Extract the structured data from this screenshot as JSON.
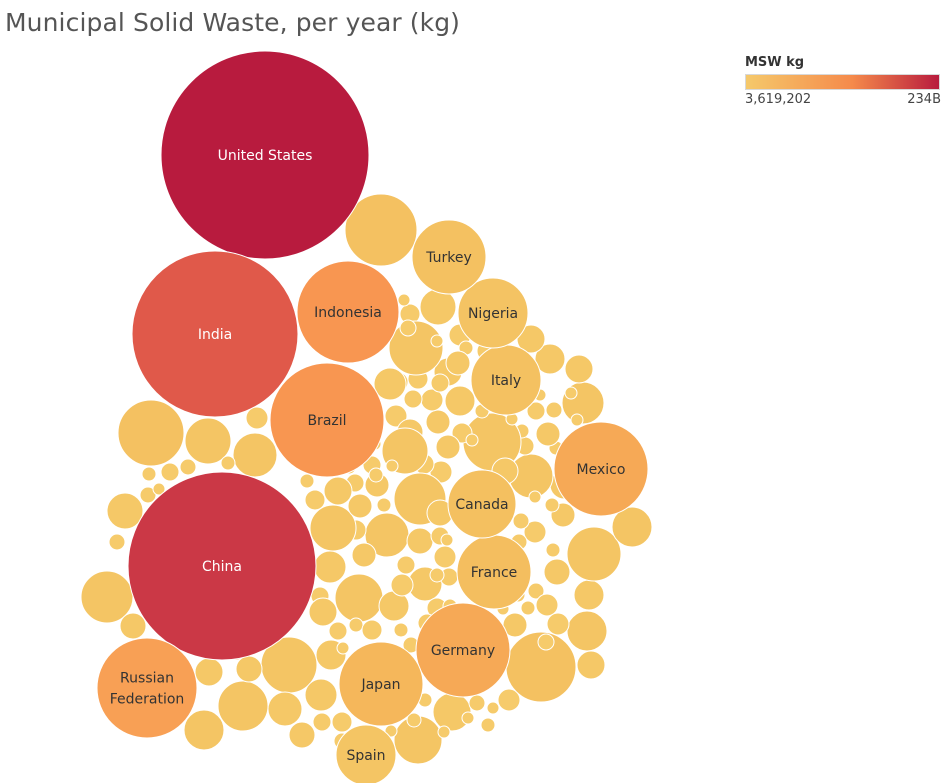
{
  "chart_data": {
    "type": "bubble",
    "title": "Municipal Solid Waste, per year (kg)",
    "legend": {
      "title": "MSW kg",
      "min_label": "3,619,202",
      "max_label": "234B",
      "placement": "top-right",
      "color_low": "#f5c96b",
      "color_mid": "#f58a4b",
      "color_high": "#b81b3e"
    },
    "labeled_bubbles": [
      {
        "name": "United States",
        "value": 234000000000
      },
      {
        "name": "China",
        "value": 200000000000
      },
      {
        "name": "India",
        "value": 160000000000
      },
      {
        "name": "Brazil",
        "value": 72000000000
      },
      {
        "name": "Indonesia",
        "value": 58000000000
      },
      {
        "name": "Russian Federation",
        "value": 56000000000
      },
      {
        "name": "Mexico",
        "value": 47000000000
      },
      {
        "name": "Germany",
        "value": 50000000000
      },
      {
        "name": "Japan",
        "value": 40000000000
      },
      {
        "name": "France",
        "value": 32000000000
      },
      {
        "name": "Canada",
        "value": 32000000000
      },
      {
        "name": "Italy",
        "value": 30000000000
      },
      {
        "name": "Nigeria",
        "value": 27000000000
      },
      {
        "name": "Turkey",
        "value": 28000000000
      },
      {
        "name": "Spain",
        "value": 22000000000
      }
    ],
    "unlabeled_bubble_count": 165
  }
}
